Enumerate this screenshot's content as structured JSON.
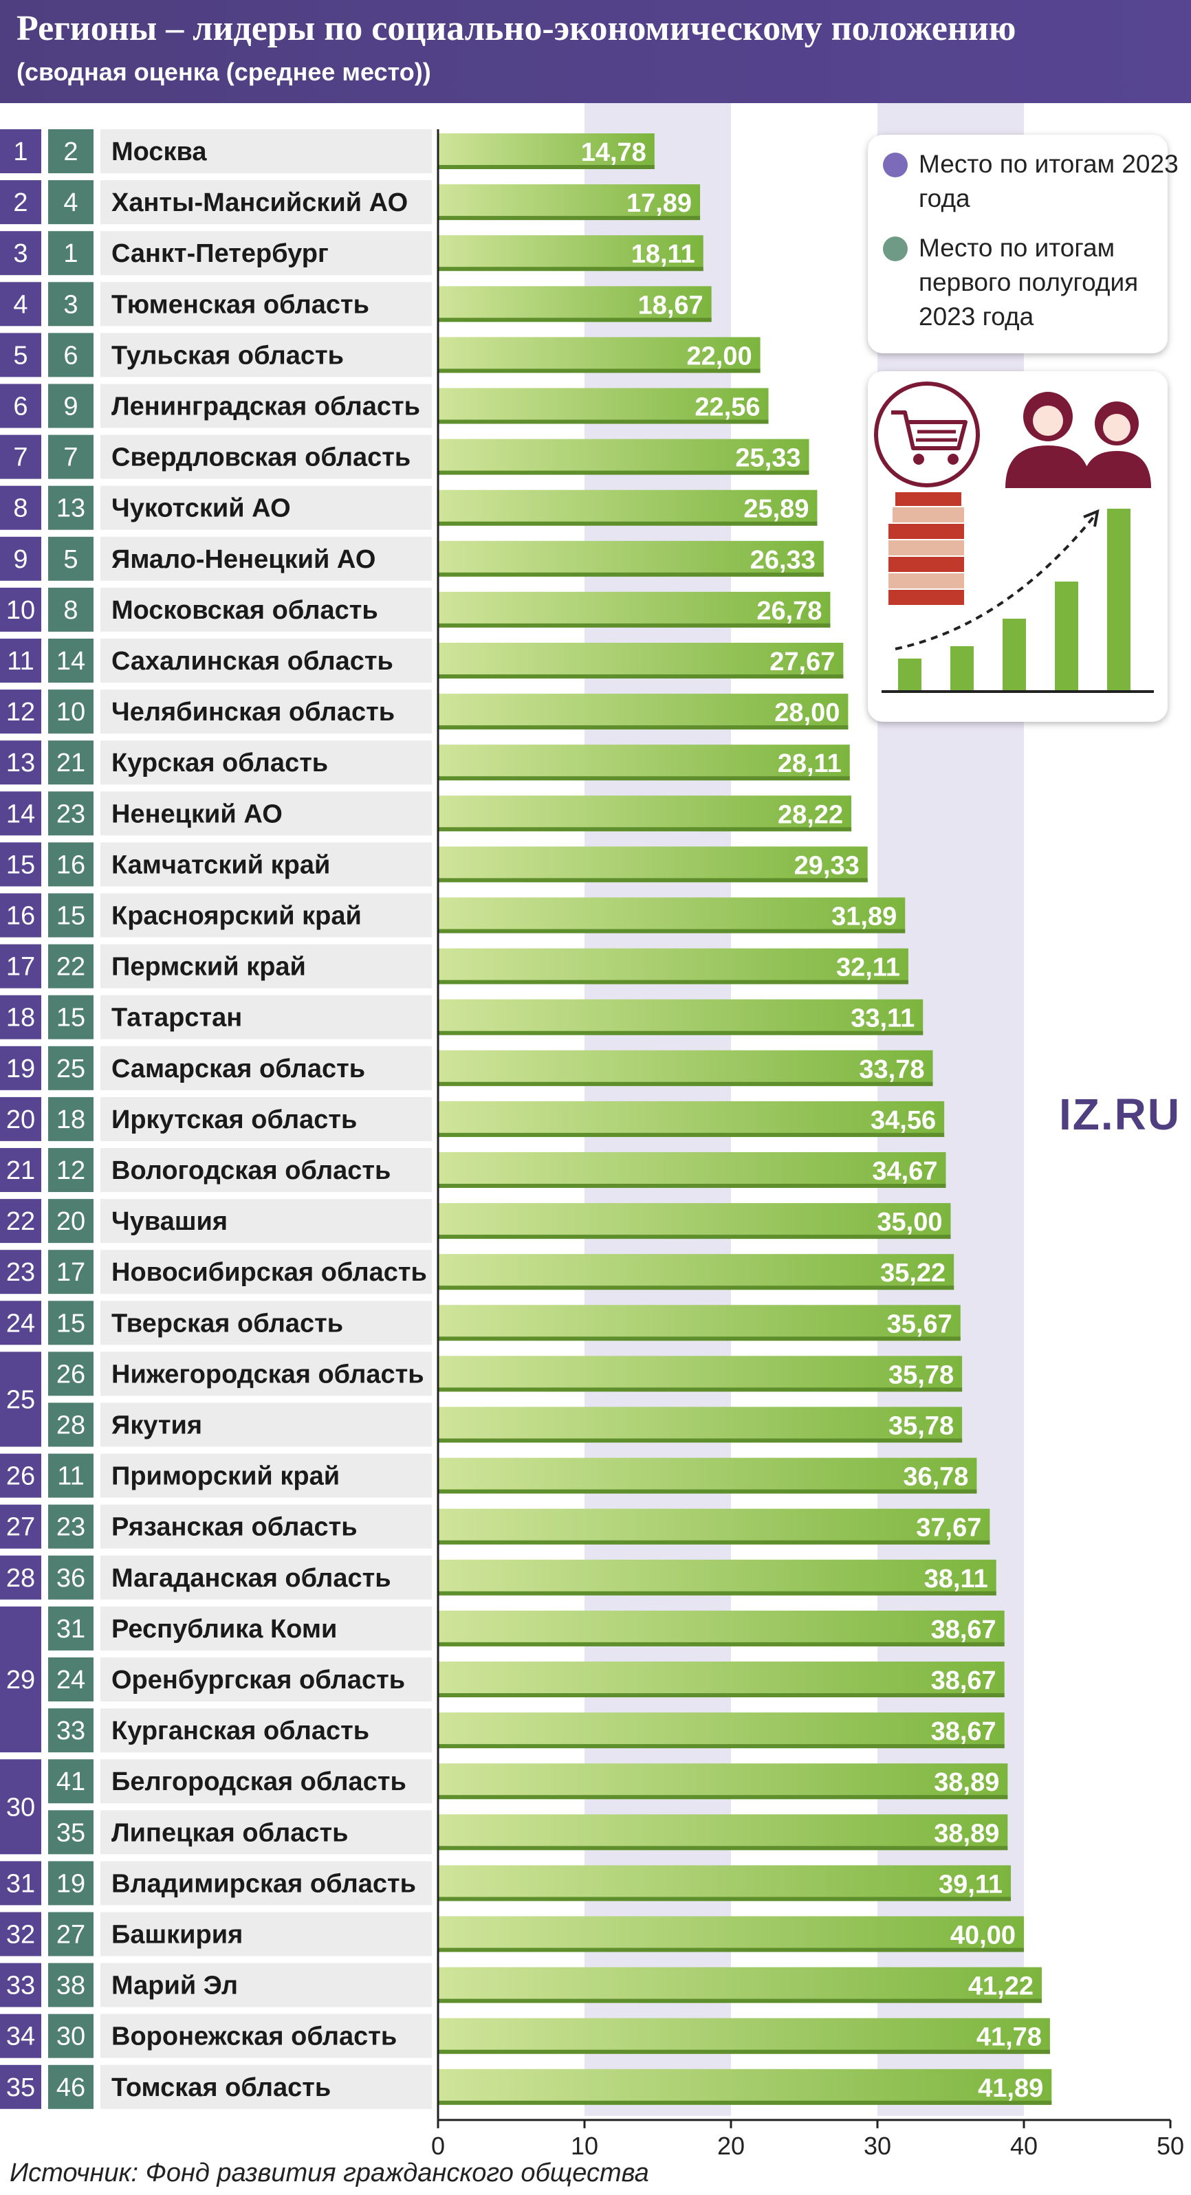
{
  "header": {
    "title": "Регионы – лидеры по социально-экономическому положению",
    "subtitle": "(сводная оценка (среднее место))"
  },
  "legend": {
    "items": [
      {
        "label": "Место по итогам 2023 года",
        "color": "#7b6bb8"
      },
      {
        "label": "Место по итогам первого полугодия 2023 года",
        "color": "#6e9a86"
      }
    ]
  },
  "brand": {
    "text": "IZ.RU"
  },
  "source": "Источник: Фонд развития гражданского общества",
  "colors": {
    "purple": "#574592",
    "teal": "#4f7f70",
    "bar_start": "#cfe49a",
    "bar_end": "#7cb53e",
    "name_bg": "#ececec",
    "band": "#e8e5f2"
  },
  "illustration": {
    "icons": [
      "shopping-cart-icon",
      "people-icon",
      "money-icon",
      "growth-chart-icon"
    ]
  },
  "chart_data": {
    "type": "bar",
    "orientation": "horizontal",
    "xlim": [
      0,
      50
    ],
    "x_ticks": [
      0,
      10,
      20,
      30,
      40,
      50
    ],
    "rows": [
      {
        "rank2023": "1",
        "rankH1": "2",
        "region": "Москва",
        "value": 14.78,
        "label": "14,78"
      },
      {
        "rank2023": "2",
        "rankH1": "4",
        "region": "Ханты-Мансийский АО",
        "value": 17.89,
        "label": "17,89"
      },
      {
        "rank2023": "3",
        "rankH1": "1",
        "region": "Санкт-Петербург",
        "value": 18.11,
        "label": "18,11"
      },
      {
        "rank2023": "4",
        "rankH1": "3",
        "region": "Тюменская область",
        "value": 18.67,
        "label": "18,67"
      },
      {
        "rank2023": "5",
        "rankH1": "6",
        "region": "Тульская область",
        "value": 22.0,
        "label": "22,00"
      },
      {
        "rank2023": "6",
        "rankH1": "9",
        "region": "Ленинградская область",
        "value": 22.56,
        "label": "22,56"
      },
      {
        "rank2023": "7",
        "rankH1": "7",
        "region": "Свердловская область",
        "value": 25.33,
        "label": "25,33"
      },
      {
        "rank2023": "8",
        "rankH1": "13",
        "region": "Чукотский АО",
        "value": 25.89,
        "label": "25,89"
      },
      {
        "rank2023": "9",
        "rankH1": "5",
        "region": "Ямало-Ненецкий АО",
        "value": 26.33,
        "label": "26,33"
      },
      {
        "rank2023": "10",
        "rankH1": "8",
        "region": "Московская область",
        "value": 26.78,
        "label": "26,78"
      },
      {
        "rank2023": "11",
        "rankH1": "14",
        "region": "Сахалинская область",
        "value": 27.67,
        "label": "27,67"
      },
      {
        "rank2023": "12",
        "rankH1": "10",
        "region": "Челябинская область",
        "value": 28.0,
        "label": "28,00"
      },
      {
        "rank2023": "13",
        "rankH1": "21",
        "region": "Курская область",
        "value": 28.11,
        "label": "28,11"
      },
      {
        "rank2023": "14",
        "rankH1": "23",
        "region": "Ненецкий АО",
        "value": 28.22,
        "label": "28,22"
      },
      {
        "rank2023": "15",
        "rankH1": "16",
        "region": "Камчатский край",
        "value": 29.33,
        "label": "29,33"
      },
      {
        "rank2023": "16",
        "rankH1": "15",
        "region": "Красноярский край",
        "value": 31.89,
        "label": "31,89"
      },
      {
        "rank2023": "17",
        "rankH1": "22",
        "region": "Пермский край",
        "value": 32.11,
        "label": "32,11"
      },
      {
        "rank2023": "18",
        "rankH1": "15",
        "region": "Татарстан",
        "value": 33.11,
        "label": "33,11"
      },
      {
        "rank2023": "19",
        "rankH1": "25",
        "region": "Самарская область",
        "value": 33.78,
        "label": "33,78"
      },
      {
        "rank2023": "20",
        "rankH1": "18",
        "region": "Иркутская область",
        "value": 34.56,
        "label": "34,56"
      },
      {
        "rank2023": "21",
        "rankH1": "12",
        "region": "Вологодская область",
        "value": 34.67,
        "label": "34,67"
      },
      {
        "rank2023": "22",
        "rankH1": "20",
        "region": "Чувашия",
        "value": 35.0,
        "label": "35,00"
      },
      {
        "rank2023": "23",
        "rankH1": "17",
        "region": "Новосибирская область",
        "value": 35.22,
        "label": "35,22"
      },
      {
        "rank2023": "24",
        "rankH1": "15",
        "region": "Тверская область",
        "value": 35.67,
        "label": "35,67"
      },
      {
        "rank2023": "25",
        "rankH1": "26",
        "region": "Нижегородская область",
        "value": 35.78,
        "label": "35,78"
      },
      {
        "rank2023": "25",
        "rankH1": "28",
        "region": "Якутия",
        "value": 35.78,
        "label": "35,78"
      },
      {
        "rank2023": "26",
        "rankH1": "11",
        "region": "Приморский край",
        "value": 36.78,
        "label": "36,78"
      },
      {
        "rank2023": "27",
        "rankH1": "23",
        "region": "Рязанская область",
        "value": 37.67,
        "label": "37,67"
      },
      {
        "rank2023": "28",
        "rankH1": "36",
        "region": "Магаданская область",
        "value": 38.11,
        "label": "38,11"
      },
      {
        "rank2023": "29",
        "rankH1": "31",
        "region": "Республика Коми",
        "value": 38.67,
        "label": "38,67"
      },
      {
        "rank2023": "29",
        "rankH1": "24",
        "region": "Оренбургская область",
        "value": 38.67,
        "label": "38,67"
      },
      {
        "rank2023": "29",
        "rankH1": "33",
        "region": "Курганская область",
        "value": 38.67,
        "label": "38,67"
      },
      {
        "rank2023": "30",
        "rankH1": "41",
        "region": "Белгородская область",
        "value": 38.89,
        "label": "38,89"
      },
      {
        "rank2023": "30",
        "rankH1": "35",
        "region": "Липецкая область",
        "value": 38.89,
        "label": "38,89"
      },
      {
        "rank2023": "31",
        "rankH1": "19",
        "region": "Владимирская область",
        "value": 39.11,
        "label": "39,11"
      },
      {
        "rank2023": "32",
        "rankH1": "27",
        "region": "Башкирия",
        "value": 40.0,
        "label": "40,00"
      },
      {
        "rank2023": "33",
        "rankH1": "38",
        "region": "Марий Эл",
        "value": 41.22,
        "label": "41,22"
      },
      {
        "rank2023": "34",
        "rankH1": "30",
        "region": "Воронежская область",
        "value": 41.78,
        "label": "41,78"
      },
      {
        "rank2023": "35",
        "rankH1": "46",
        "region": "Томская область",
        "value": 41.89,
        "label": "41,89"
      }
    ]
  }
}
